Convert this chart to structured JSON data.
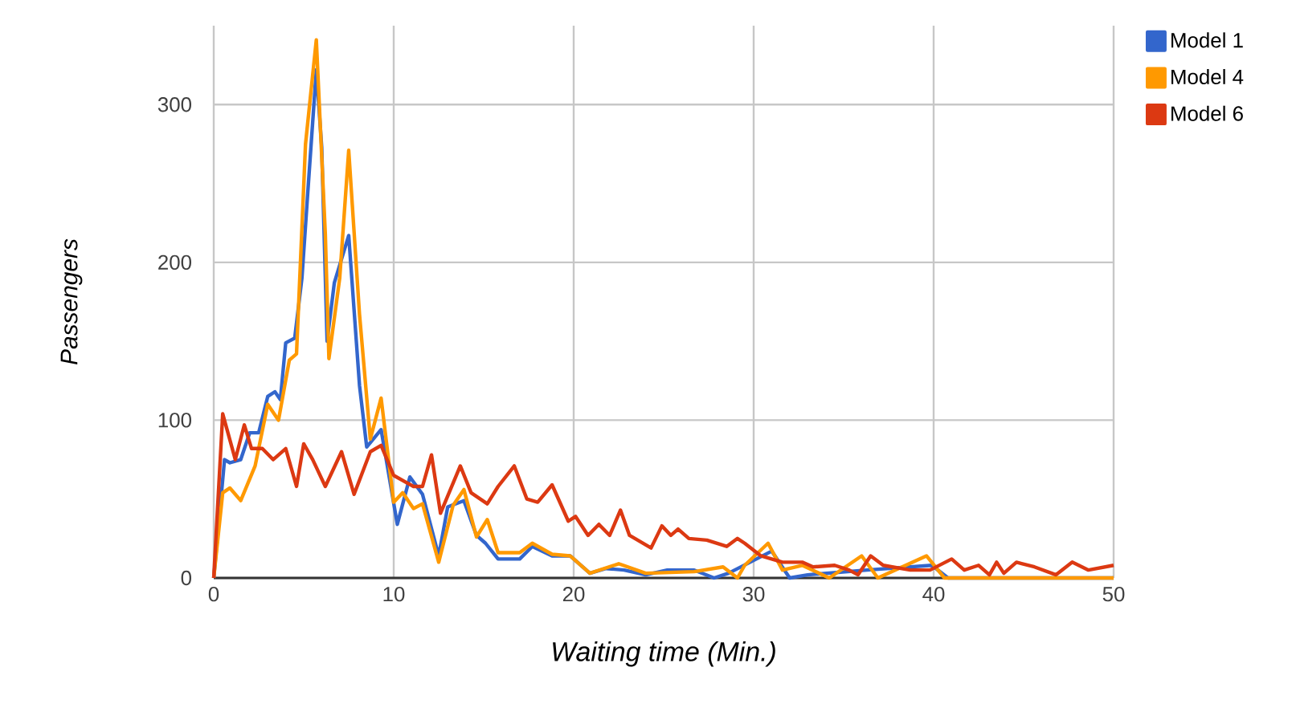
{
  "chart_data": {
    "type": "line",
    "xlabel": "*Waiting time (Min.)*",
    "ylabel": "*Passengers*",
    "xlim": [
      0,
      50
    ],
    "ylim": [
      0,
      350
    ],
    "xticks": [
      0,
      10,
      20,
      30,
      40,
      50
    ],
    "yticks": [
      0,
      100,
      200,
      300
    ],
    "grid": true,
    "legend": "top right",
    "marker": "none",
    "line_style": "solid",
    "series": [
      {
        "name": "Model 1",
        "color": "#3366cc",
        "x": [
          0,
          0.6,
          0.9,
          1.5,
          2.0,
          2.5,
          3.0,
          3.4,
          3.7,
          4.0,
          4.5,
          4.9,
          5.2,
          5.7,
          6.0,
          6.3,
          6.7,
          7.5,
          8.1,
          8.5,
          9.3,
          10.2,
          10.9,
          11.6,
          12.5,
          13.0,
          13.9,
          14.6,
          15.1,
          15.8,
          17.0,
          17.7,
          18.8,
          19.8,
          20.9,
          21.8,
          22.8,
          24.0,
          25.2,
          26.7,
          27.8,
          28.6,
          31.0,
          32.0,
          33.0,
          36.3,
          39.9,
          40.8,
          50
        ],
        "values": [
          0,
          75,
          73,
          75,
          92,
          92,
          115,
          118,
          113,
          149,
          152,
          190,
          240,
          322,
          273,
          150,
          187,
          217,
          122,
          83,
          94,
          34,
          64,
          53,
          14,
          45,
          49,
          27,
          22,
          12,
          12,
          20,
          14,
          14,
          3,
          6,
          5,
          2,
          5,
          5,
          0,
          3,
          17,
          0,
          2,
          5,
          8,
          0,
          0
        ]
      },
      {
        "name": "Model 4",
        "color": "#ff9900",
        "x": [
          0,
          0.5,
          0.9,
          1.5,
          2.3,
          3.0,
          3.6,
          4.2,
          4.6,
          5.1,
          5.7,
          6.2,
          6.4,
          7.0,
          7.5,
          8.1,
          8.7,
          9.3,
          10.0,
          10.5,
          11.1,
          11.6,
          12.5,
          13.3,
          13.9,
          14.6,
          15.2,
          15.8,
          17.0,
          17.7,
          18.8,
          19.8,
          20.9,
          22.5,
          24.0,
          26.7,
          28.3,
          29.1,
          29.5,
          30.8,
          31.6,
          32.7,
          34.2,
          36.0,
          36.9,
          39.6,
          40.6,
          50
        ],
        "values": [
          0,
          54,
          57,
          49,
          71,
          110,
          100,
          138,
          142,
          275,
          341,
          218,
          139,
          190,
          271,
          167,
          88,
          114,
          48,
          54,
          44,
          47,
          10,
          46,
          56,
          26,
          37,
          16,
          16,
          22,
          15,
          14,
          3,
          9,
          3,
          4,
          7,
          0,
          8,
          22,
          5,
          8,
          0,
          14,
          0,
          14,
          0,
          0
        ]
      },
      {
        "name": "Model 6",
        "color": "#dc3912",
        "x": [
          0,
          0.5,
          1.2,
          1.7,
          2.1,
          2.7,
          3.3,
          4.0,
          4.6,
          5.0,
          5.5,
          6.2,
          7.1,
          7.8,
          8.7,
          9.3,
          10.0,
          11.1,
          11.6,
          12.1,
          12.6,
          13.7,
          14.3,
          15.2,
          15.8,
          16.7,
          17.4,
          18.0,
          18.8,
          19.7,
          20.1,
          20.8,
          21.4,
          22.0,
          22.6,
          23.1,
          24.3,
          24.9,
          25.4,
          25.8,
          26.4,
          27.4,
          28.5,
          29.1,
          29.5,
          30.4,
          31.6,
          32.7,
          33.3,
          34.5,
          35.3,
          35.8,
          36.5,
          37.2,
          38.7,
          39.8,
          41.0,
          41.7,
          42.5,
          43.1,
          43.5,
          43.9,
          44.6,
          45.6,
          46.8,
          47.7,
          48.6,
          50
        ],
        "values": [
          0,
          104,
          75,
          97,
          82,
          82,
          75,
          82,
          58,
          85,
          75,
          58,
          80,
          53,
          80,
          84,
          65,
          58,
          58,
          78,
          41,
          71,
          54,
          47,
          58,
          71,
          50,
          48,
          59,
          36,
          39,
          27,
          34,
          27,
          43,
          27,
          19,
          33,
          27,
          31,
          25,
          24,
          20,
          25,
          22,
          14,
          10,
          10,
          7,
          8,
          5,
          2,
          14,
          8,
          5,
          5,
          12,
          5,
          8,
          2,
          10,
          3,
          10,
          7,
          2,
          10,
          5,
          8
        ]
      }
    ]
  }
}
